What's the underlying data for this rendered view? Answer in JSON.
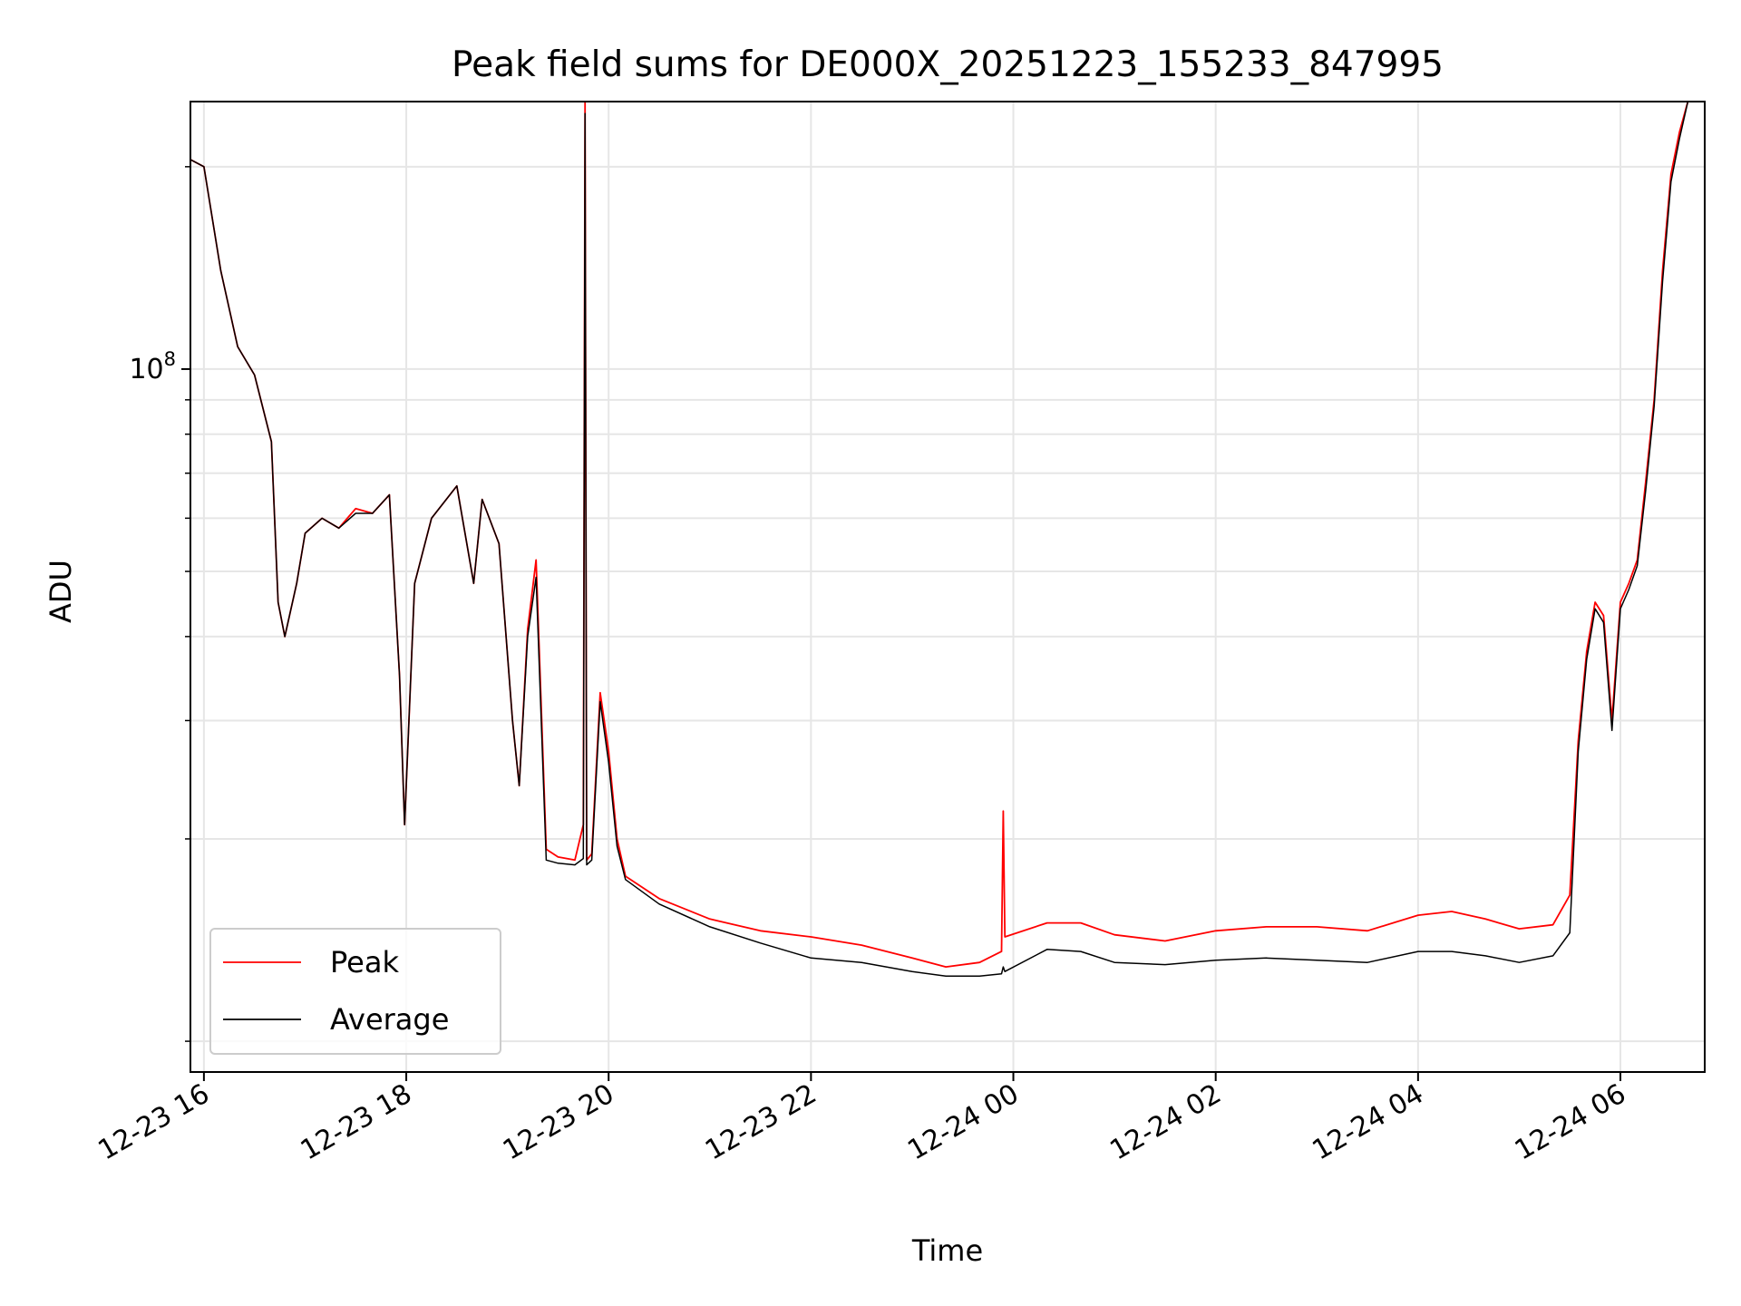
{
  "chart_data": {
    "type": "line",
    "title": "Peak field sums for DE000X_20251223_155233_847995",
    "xlabel": "Time",
    "ylabel": "ADU",
    "x_axis_kind": "datetime",
    "x_range": [
      "2025-12-23 15:52",
      "2025-12-24 06:50"
    ],
    "x_ticks": [
      "12-23 16",
      "12-23 18",
      "12-23 20",
      "12-23 22",
      "12-24 00",
      "12-24 02",
      "12-24 04",
      "12-24 06"
    ],
    "x_tick_times": [
      "2025-12-23 16:00",
      "2025-12-23 18:00",
      "2025-12-23 20:00",
      "2025-12-23 22:00",
      "2025-12-24 00:00",
      "2025-12-24 02:00",
      "2025-12-24 04:00",
      "2025-12-24 06:00"
    ],
    "y_scale": "log",
    "ylim": [
      9000000,
      250000000
    ],
    "y_major_ticks": [
      {
        "value": 100000000,
        "label_base": "10",
        "label_exp": "8"
      }
    ],
    "y_minor_ticks": [
      10000000,
      20000000,
      30000000,
      40000000,
      50000000,
      60000000,
      70000000,
      80000000,
      90000000,
      200000000
    ],
    "grid": true,
    "legend": "lower-left",
    "series": [
      {
        "name": "Peak",
        "color": "#ff0000",
        "x": [
          "2025-12-23 15:52",
          "2025-12-23 16:00",
          "2025-12-23 16:10",
          "2025-12-23 16:20",
          "2025-12-23 16:30",
          "2025-12-23 16:40",
          "2025-12-23 16:44",
          "2025-12-23 16:48",
          "2025-12-23 16:55",
          "2025-12-23 17:00",
          "2025-12-23 17:10",
          "2025-12-23 17:20",
          "2025-12-23 17:30",
          "2025-12-23 17:40",
          "2025-12-23 17:50",
          "2025-12-23 17:56",
          "2025-12-23 17:59",
          "2025-12-23 18:05",
          "2025-12-23 18:15",
          "2025-12-23 18:30",
          "2025-12-23 18:40",
          "2025-12-23 18:45",
          "2025-12-23 18:55",
          "2025-12-23 19:03",
          "2025-12-23 19:07",
          "2025-12-23 19:12",
          "2025-12-23 19:17",
          "2025-12-23 19:23",
          "2025-12-23 19:30",
          "2025-12-23 19:40",
          "2025-12-23 19:45",
          "2025-12-23 19:46",
          "2025-12-23 19:47",
          "2025-12-23 19:50",
          "2025-12-23 19:55",
          "2025-12-23 20:00",
          "2025-12-23 20:05",
          "2025-12-23 20:10",
          "2025-12-23 20:30",
          "2025-12-23 21:00",
          "2025-12-23 21:30",
          "2025-12-23 22:00",
          "2025-12-23 22:30",
          "2025-12-23 23:00",
          "2025-12-23 23:20",
          "2025-12-23 23:40",
          "2025-12-23 23:53",
          "2025-12-23 23:54",
          "2025-12-23 23:55",
          "2025-12-24 00:20",
          "2025-12-24 00:40",
          "2025-12-24 01:00",
          "2025-12-24 01:30",
          "2025-12-24 02:00",
          "2025-12-24 02:30",
          "2025-12-24 03:00",
          "2025-12-24 03:30",
          "2025-12-24 04:00",
          "2025-12-24 04:20",
          "2025-12-24 04:40",
          "2025-12-24 05:00",
          "2025-12-24 05:20",
          "2025-12-24 05:30",
          "2025-12-24 05:35",
          "2025-12-24 05:40",
          "2025-12-24 05:45",
          "2025-12-24 05:50",
          "2025-12-24 05:55",
          "2025-12-24 06:00",
          "2025-12-24 06:05",
          "2025-12-24 06:10",
          "2025-12-24 06:15",
          "2025-12-24 06:20",
          "2025-12-24 06:25",
          "2025-12-24 06:30",
          "2025-12-24 06:35",
          "2025-12-24 06:40"
        ],
        "y": [
          205000000,
          200000000,
          140000000,
          108000000,
          98000000,
          78000000,
          45000000,
          40000000,
          48000000,
          57000000,
          60000000,
          58000000,
          62000000,
          61000000,
          65000000,
          35000000,
          21000000,
          48000000,
          60000000,
          67000000,
          48000000,
          64000000,
          55000000,
          30000000,
          24000000,
          41000000,
          52000000,
          19300000,
          18800000,
          18600000,
          21000000,
          250000000,
          18600000,
          19000000,
          33000000,
          27000000,
          20000000,
          17600000,
          16300000,
          15200000,
          14600000,
          14300000,
          13900000,
          13300000,
          12900000,
          13100000,
          13600000,
          22000000,
          14300000,
          15000000,
          15000000,
          14400000,
          14100000,
          14600000,
          14800000,
          14800000,
          14600000,
          15400000,
          15600000,
          15200000,
          14700000,
          14900000,
          16500000,
          28000000,
          38000000,
          45000000,
          43000000,
          30000000,
          45000000,
          48000000,
          52000000,
          68000000,
          90000000,
          140000000,
          195000000,
          225000000,
          250000000
        ]
      },
      {
        "name": "Average",
        "color": "#000000",
        "x": [
          "2025-12-23 15:52",
          "2025-12-23 16:00",
          "2025-12-23 16:10",
          "2025-12-23 16:20",
          "2025-12-23 16:30",
          "2025-12-23 16:40",
          "2025-12-23 16:44",
          "2025-12-23 16:48",
          "2025-12-23 16:55",
          "2025-12-23 17:00",
          "2025-12-23 17:10",
          "2025-12-23 17:20",
          "2025-12-23 17:30",
          "2025-12-23 17:40",
          "2025-12-23 17:50",
          "2025-12-23 17:56",
          "2025-12-23 17:59",
          "2025-12-23 18:05",
          "2025-12-23 18:15",
          "2025-12-23 18:30",
          "2025-12-23 18:40",
          "2025-12-23 18:45",
          "2025-12-23 18:55",
          "2025-12-23 19:03",
          "2025-12-23 19:07",
          "2025-12-23 19:12",
          "2025-12-23 19:17",
          "2025-12-23 19:23",
          "2025-12-23 19:30",
          "2025-12-23 19:40",
          "2025-12-23 19:45",
          "2025-12-23 19:46",
          "2025-12-23 19:47",
          "2025-12-23 19:50",
          "2025-12-23 19:55",
          "2025-12-23 20:00",
          "2025-12-23 20:05",
          "2025-12-23 20:10",
          "2025-12-23 20:30",
          "2025-12-23 21:00",
          "2025-12-23 21:30",
          "2025-12-23 22:00",
          "2025-12-23 22:30",
          "2025-12-23 23:00",
          "2025-12-23 23:20",
          "2025-12-23 23:40",
          "2025-12-23 23:53",
          "2025-12-23 23:54",
          "2025-12-23 23:55",
          "2025-12-24 00:20",
          "2025-12-24 00:40",
          "2025-12-24 01:00",
          "2025-12-24 01:30",
          "2025-12-24 02:00",
          "2025-12-24 02:30",
          "2025-12-24 03:00",
          "2025-12-24 03:30",
          "2025-12-24 04:00",
          "2025-12-24 04:20",
          "2025-12-24 04:40",
          "2025-12-24 05:00",
          "2025-12-24 05:20",
          "2025-12-24 05:30",
          "2025-12-24 05:35",
          "2025-12-24 05:40",
          "2025-12-24 05:45",
          "2025-12-24 05:50",
          "2025-12-24 05:55",
          "2025-12-24 06:00",
          "2025-12-24 06:05",
          "2025-12-24 06:10",
          "2025-12-24 06:15",
          "2025-12-24 06:20",
          "2025-12-24 06:25",
          "2025-12-24 06:30",
          "2025-12-24 06:35",
          "2025-12-24 06:40"
        ],
        "y": [
          205000000,
          200000000,
          140000000,
          108000000,
          98000000,
          78000000,
          45000000,
          40000000,
          48000000,
          57000000,
          60000000,
          58000000,
          61000000,
          61000000,
          65000000,
          35000000,
          21000000,
          48000000,
          60000000,
          67000000,
          48000000,
          64000000,
          55000000,
          30000000,
          24000000,
          40000000,
          49000000,
          18600000,
          18400000,
          18300000,
          18700000,
          240000000,
          18300000,
          18600000,
          32000000,
          26000000,
          19500000,
          17400000,
          16000000,
          14800000,
          14000000,
          13300000,
          13100000,
          12700000,
          12500000,
          12500000,
          12600000,
          12900000,
          12700000,
          13700000,
          13600000,
          13100000,
          13000000,
          13200000,
          13300000,
          13200000,
          13100000,
          13600000,
          13600000,
          13400000,
          13100000,
          13400000,
          14500000,
          27000000,
          37000000,
          44000000,
          42000000,
          29000000,
          44000000,
          47000000,
          51000000,
          66000000,
          88000000,
          135000000,
          190000000,
          220000000,
          250000000
        ]
      }
    ]
  }
}
